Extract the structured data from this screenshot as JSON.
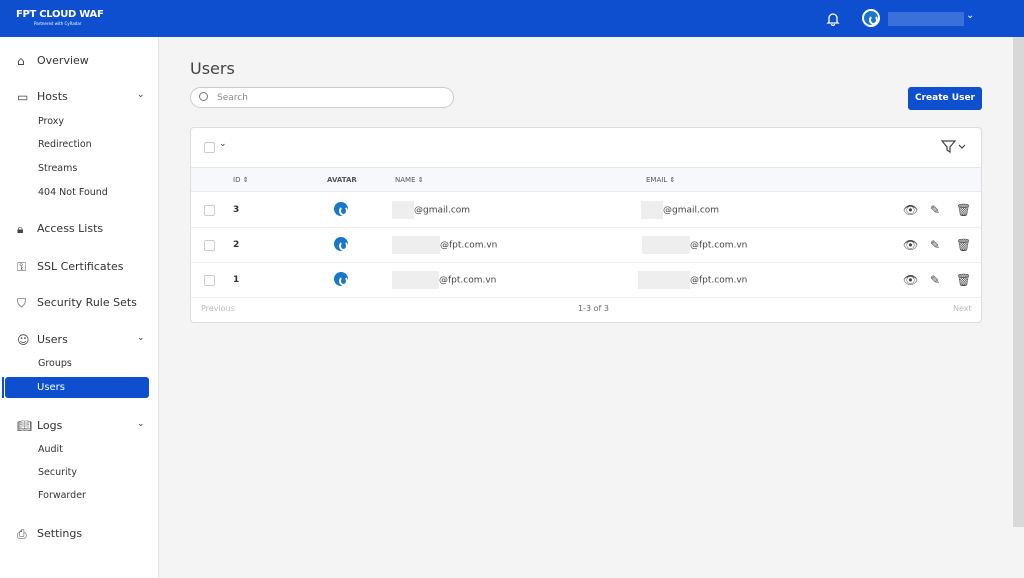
{
  "header": {
    "logo": "FPT CLOUD  WAF",
    "logo_sub": "Partnered with CyRadar",
    "user": ""
  },
  "sidebar": {
    "items": [
      {
        "label": "Overview",
        "icon": "home-icon"
      },
      {
        "label": "Hosts",
        "icon": "monitor-icon"
      },
      {
        "label": "Access Lists",
        "icon": "lock-icon"
      },
      {
        "label": "SSL Certificates",
        "icon": "key-icon"
      },
      {
        "label": "Security Rule Sets",
        "icon": "shield-icon"
      },
      {
        "label": "Users",
        "icon": "users-icon"
      },
      {
        "label": "Logs",
        "icon": "book-icon"
      },
      {
        "label": "Settings",
        "icon": "printer-icon"
      }
    ],
    "hosts_sub": [
      "Proxy",
      "Redirection",
      "Streams",
      "404 Not Found"
    ],
    "users_sub": [
      "Groups",
      "Users"
    ],
    "logs_sub": [
      "Audit",
      "Security",
      "Forwarder"
    ]
  },
  "page": {
    "title": "Users",
    "search_placeholder": "Search",
    "create_label": "Create User"
  },
  "table": {
    "headers": {
      "id": "ID",
      "avatar": "AVATAR",
      "name": "NAME",
      "email": "EMAIL"
    },
    "rows": [
      {
        "id": "3",
        "name": "@gmail.com",
        "email": "@gmail.com"
      },
      {
        "id": "2",
        "name": "@fpt.com.vn",
        "email": "@fpt.com.vn"
      },
      {
        "id": "1",
        "name": "@fpt.com.vn",
        "email": "@fpt.com.vn"
      }
    ],
    "previous": "Previous",
    "range": "1-3 of 3",
    "next": "Next"
  }
}
